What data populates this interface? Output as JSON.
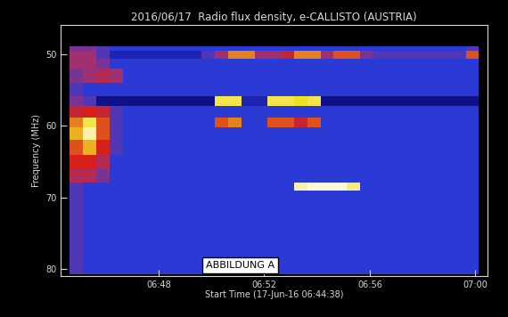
{
  "chart_data": {
    "type": "heatmap",
    "title": "2016/06/17  Radio flux density, e-CALLISTO (AUSTRIA)",
    "x_label": "Start Time (17-Jun-16 06:44:38)",
    "y_label": "Frequency (MHz)",
    "annotation": "ABBILDUNG A",
    "xlim": [
      -20,
      950
    ],
    "xticks": [
      {
        "value": 202,
        "label": "06:48"
      },
      {
        "value": 442,
        "label": "06:52"
      },
      {
        "value": 682,
        "label": "06:56"
      },
      {
        "value": 922,
        "label": "07:00"
      }
    ],
    "ylim": [
      81,
      45.9
    ],
    "yticks": [
      50,
      60,
      70,
      80
    ],
    "color_range": [
      0,
      10
    ],
    "x": [
      0,
      30,
      60,
      90,
      120,
      150,
      180,
      210,
      240,
      270,
      300,
      330,
      360,
      390,
      420,
      450,
      480,
      510,
      540,
      570,
      600,
      630,
      660,
      690,
      720,
      750,
      780,
      810,
      840,
      870,
      900,
      930
    ],
    "y": [
      48.8,
      49.5,
      50.6,
      52,
      54,
      55.8,
      57.2,
      58.8,
      60.2,
      62,
      64,
      66,
      67.9,
      69.1,
      72,
      76,
      80.8
    ],
    "cells": [
      [
        3.5,
        3.5,
        3,
        2.5,
        2.5,
        2.5,
        2.5,
        2.5,
        2.5,
        2.5,
        2.5,
        2.5,
        2.5,
        2.5,
        2.5,
        2.5,
        2.5,
        2.5,
        2.5,
        2.5,
        2.5,
        2.5,
        2.5,
        2.5,
        2.5,
        2.5,
        2.5,
        2.5,
        2.5,
        2.5,
        3
      ],
      [
        4,
        4,
        3,
        2,
        2,
        2,
        2,
        2,
        2,
        2,
        3,
        4,
        6.5,
        6.5,
        4,
        4,
        5,
        6.5,
        6.5,
        4,
        6,
        6,
        3.5,
        3,
        3,
        3,
        3,
        3,
        3,
        3,
        6
      ],
      [
        4,
        4,
        3.5,
        2.5,
        2.5,
        2.5,
        2.5,
        2.5,
        2.5,
        2.5,
        2.5,
        2.5,
        2.5,
        2.5,
        2.5,
        2.5,
        2.5,
        2.5,
        2.5,
        2.5,
        2.5,
        2.5,
        2.5,
        2.5,
        2.5,
        2.5,
        2.5,
        2.5,
        2.5,
        2.5,
        2.5
      ],
      [
        3.5,
        4,
        4.5,
        4,
        2.5,
        2.5,
        2.5,
        2.5,
        2.5,
        2.5,
        2.5,
        2.5,
        2.5,
        2.5,
        2.5,
        2.5,
        2.5,
        2.5,
        2.5,
        2.5,
        2.5,
        2.5,
        2.5,
        2.5,
        2.5,
        2.5,
        2.5,
        2.5,
        2.5,
        2.5,
        2.5
      ],
      [
        3,
        2.5,
        2.5,
        2.5,
        2.5,
        2.5,
        2.5,
        2.5,
        2.5,
        2.5,
        2.5,
        2.5,
        2.5,
        2.5,
        2.5,
        2.5,
        2.5,
        2.5,
        2.5,
        2.5,
        2.5,
        2.5,
        2.5,
        2.5,
        2.5,
        2.5,
        2.5,
        2.5,
        2.5,
        2.5,
        2.5
      ],
      [
        3.5,
        3,
        1.5,
        1.5,
        1.5,
        1.5,
        1.5,
        1.5,
        1.5,
        1.5,
        1.5,
        8,
        8,
        2,
        2,
        8,
        8,
        7.5,
        8,
        1.5,
        1.5,
        1.5,
        1.5,
        1.5,
        1.5,
        1.5,
        1.5,
        1.5,
        1.5,
        1.5,
        1.5
      ],
      [
        5,
        5.5,
        5,
        3,
        2.5,
        2.5,
        2.5,
        2.5,
        2.5,
        2.5,
        2.5,
        2.5,
        2.5,
        2.5,
        2.5,
        2.5,
        2.5,
        2.5,
        2.5,
        2.5,
        2.5,
        2.5,
        2.5,
        2.5,
        2.5,
        2.5,
        2.5,
        2.5,
        2.5,
        2.5,
        2.5
      ],
      [
        6.5,
        8,
        6,
        3,
        2.5,
        2.5,
        2.5,
        2.5,
        2.5,
        2.5,
        2.5,
        6,
        6.5,
        2.5,
        2.5,
        6,
        6,
        5,
        6,
        2.5,
        2.5,
        2.5,
        2.5,
        2.5,
        2.5,
        2.5,
        2.5,
        2.5,
        2.5,
        2.5,
        2.5
      ],
      [
        7,
        9,
        6,
        3,
        2.5,
        2.5,
        2.5,
        2.5,
        2.5,
        2.5,
        2.5,
        2.5,
        2.5,
        2.5,
        2.5,
        2.5,
        2.5,
        2.5,
        2.5,
        2.5,
        2.5,
        2.5,
        2.5,
        2.5,
        2.5,
        2.5,
        2.5,
        2.5,
        2.5,
        2.5,
        2.5
      ],
      [
        6,
        7,
        5.5,
        3,
        2.5,
        2.5,
        2.5,
        2.5,
        2.5,
        2.5,
        2.5,
        2.5,
        2.5,
        2.5,
        2.5,
        2.5,
        2.5,
        2.5,
        2.5,
        2.5,
        2.5,
        2.5,
        2.5,
        2.5,
        2.5,
        2.5,
        2.5,
        2.5,
        2.5,
        2.5,
        2.5
      ],
      [
        5.5,
        5.5,
        4.5,
        2.5,
        2.5,
        2.5,
        2.5,
        2.5,
        2.5,
        2.5,
        2.5,
        2.5,
        2.5,
        2.5,
        2.5,
        2.5,
        2.5,
        2.5,
        2.5,
        2.5,
        2.5,
        2.5,
        2.5,
        2.5,
        2.5,
        2.5,
        2.5,
        2.5,
        2.5,
        2.5,
        2.5
      ],
      [
        4.5,
        4.5,
        3.5,
        2.5,
        2.5,
        2.5,
        2.5,
        2.5,
        2.5,
        2.5,
        2.5,
        2.5,
        2.5,
        2.5,
        2.5,
        2.5,
        2.5,
        2.5,
        2.5,
        2.5,
        2.5,
        2.5,
        2.5,
        2.5,
        2.5,
        2.5,
        2.5,
        2.5,
        2.5,
        2.5,
        2.5
      ],
      [
        3,
        2.5,
        2.5,
        2.5,
        2.5,
        2.5,
        2.5,
        2.5,
        2.5,
        2.5,
        2.5,
        2.5,
        2.5,
        2.5,
        2.5,
        2.5,
        2.5,
        9,
        9.5,
        9.5,
        9.5,
        8.5,
        2.5,
        2.5,
        2.5,
        2.5,
        2.5,
        2.5,
        2.5,
        2.5,
        2.5
      ],
      [
        3,
        2.5,
        2.5,
        2.5,
        2.5,
        2.5,
        2.5,
        2.5,
        2.5,
        2.5,
        2.5,
        2.5,
        2.5,
        2.5,
        2.5,
        2.5,
        2.5,
        2.5,
        2.5,
        2.5,
        2.5,
        2.5,
        2.5,
        2.5,
        2.5,
        2.5,
        2.5,
        2.5,
        2.5,
        2.5,
        2.5
      ],
      [
        3,
        2.5,
        2.5,
        2.5,
        2.5,
        2.5,
        2.5,
        2.5,
        2.5,
        2.5,
        2.5,
        2.5,
        2.5,
        2.5,
        2.5,
        2.5,
        2.5,
        2.5,
        2.5,
        2.5,
        2.5,
        2.5,
        2.5,
        2.5,
        2.5,
        2.5,
        2.5,
        2.5,
        2.5,
        2.5,
        2.5
      ],
      [
        3,
        2.5,
        2.5,
        2.5,
        2.5,
        2.5,
        2.5,
        2.5,
        2.5,
        2.5,
        2.5,
        2.5,
        2.5,
        2.5,
        2.5,
        2.5,
        2.5,
        2.5,
        2.5,
        2.5,
        2.5,
        2.5,
        2.5,
        2.5,
        2.5,
        2.5,
        2.5,
        2.5,
        2.5,
        2.5,
        2.5
      ]
    ]
  }
}
